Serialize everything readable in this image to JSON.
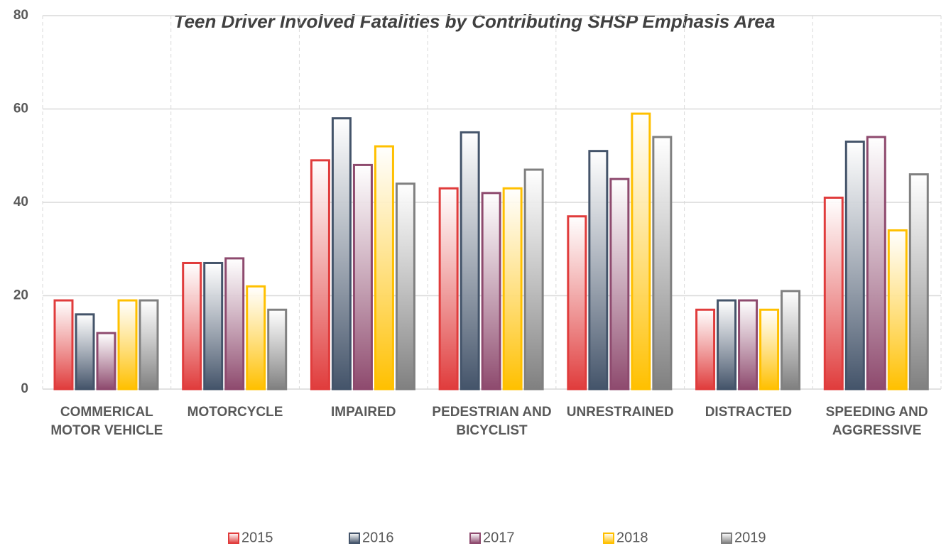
{
  "chart_data": {
    "type": "bar",
    "title": "Teen Driver Involved Fatalities by Contributing SHSP Emphasis Area",
    "categories": [
      "COMMERICAL MOTOR VEHICLE",
      "MOTORCYCLE",
      "IMPAIRED",
      "PEDESTRIAN AND BICYCLIST",
      "UNRESTRAINED",
      "DISTRACTED",
      "SPEEDING AND AGGRESSIVE"
    ],
    "series": [
      {
        "name": "2015",
        "color": "#e03c3c",
        "values": [
          19,
          27,
          49,
          43,
          37,
          17,
          41
        ]
      },
      {
        "name": "2016",
        "color": "#44546a",
        "values": [
          16,
          27,
          58,
          55,
          51,
          19,
          53
        ]
      },
      {
        "name": "2017",
        "color": "#8e4a6e",
        "values": [
          12,
          28,
          48,
          42,
          45,
          19,
          54
        ]
      },
      {
        "name": "2018",
        "color": "#ffc000",
        "values": [
          19,
          22,
          52,
          43,
          59,
          17,
          34
        ]
      },
      {
        "name": "2019",
        "color": "#808080",
        "values": [
          19,
          17,
          44,
          47,
          54,
          21,
          46
        ]
      }
    ],
    "ylim": [
      0,
      80
    ],
    "yticks": [
      0,
      20,
      40,
      60,
      80
    ],
    "grid": true,
    "legend": "bottom"
  }
}
